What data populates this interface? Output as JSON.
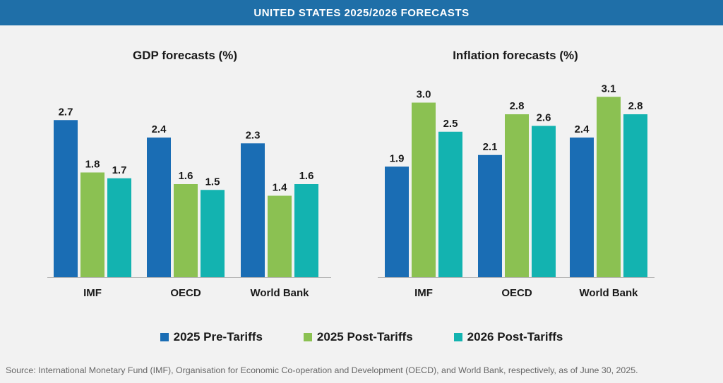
{
  "banner": {
    "title": "UNITED STATES 2025/2026 FORECASTS"
  },
  "chart_data": [
    {
      "type": "bar",
      "title": "GDP forecasts (%)",
      "categories": [
        "IMF",
        "OECD",
        "World Bank"
      ],
      "series": [
        {
          "name": "2025 Pre-Tariffs",
          "values": [
            2.7,
            2.4,
            2.3
          ],
          "labels": [
            "2.7",
            "2.4",
            "2.3"
          ]
        },
        {
          "name": "2025 Post-Tariffs",
          "values": [
            1.8,
            1.6,
            1.4
          ],
          "labels": [
            "1.8",
            "1.6",
            "1.4"
          ]
        },
        {
          "name": "2026 Post-Tariffs",
          "values": [
            1.7,
            1.5,
            1.6
          ],
          "labels": [
            "1.7",
            "1.5",
            "1.6"
          ]
        }
      ]
    },
    {
      "type": "bar",
      "title": "Inflation forecasts (%)",
      "categories": [
        "IMF",
        "OECD",
        "World Bank"
      ],
      "series": [
        {
          "name": "2025 Pre-Tariffs",
          "values": [
            1.9,
            2.1,
            2.4
          ],
          "labels": [
            "1.9",
            "2.1",
            "2.4"
          ]
        },
        {
          "name": "2025 Post-Tariffs",
          "values": [
            3.0,
            2.8,
            3.1
          ],
          "labels": [
            "3.0",
            "2.8",
            "3.1"
          ]
        },
        {
          "name": "2026 Post-Tariffs",
          "values": [
            2.5,
            2.6,
            2.8
          ],
          "labels": [
            "2.5",
            "2.6",
            "2.8"
          ]
        }
      ]
    }
  ],
  "colors": {
    "pre_2025": "#1a6db4",
    "post_2025": "#8bc152",
    "post_2026": "#13b3b0",
    "banner": "#1f6fa8"
  },
  "legend": {
    "items": [
      {
        "label": "2025 Pre-Tariffs",
        "color": "#1a6db4"
      },
      {
        "label": "2025 Post-Tariffs",
        "color": "#8bc152"
      },
      {
        "label": "2026 Post-Tariffs",
        "color": "#13b3b0"
      }
    ]
  },
  "source": "Source: International Monetary Fund (IMF), Organisation for Economic Co-operation and Development (OECD), and World Bank, respectively, as of June 30, 2025."
}
